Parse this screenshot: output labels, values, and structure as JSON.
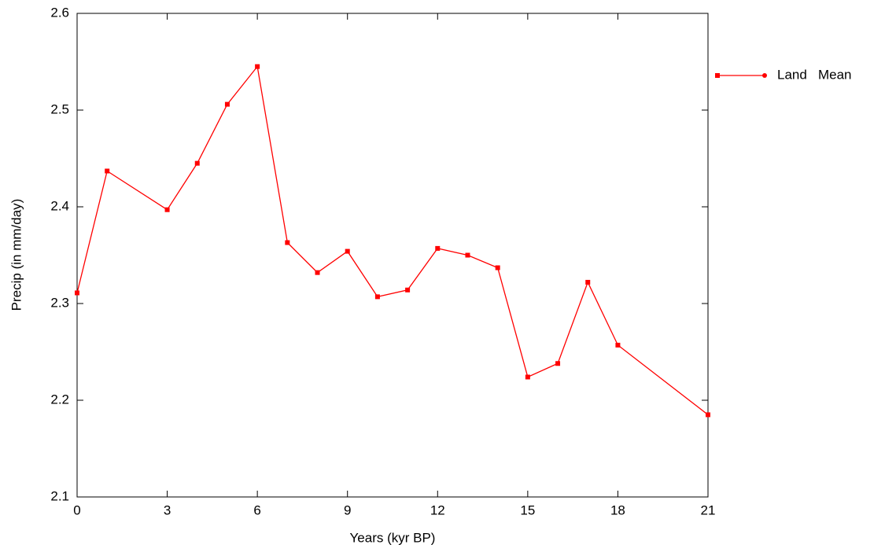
{
  "chart_data": {
    "type": "line",
    "x_label": "Years (kyr BP)",
    "y_label": "Precip (in mm/day)",
    "x": [
      0,
      1,
      3,
      4,
      5,
      6,
      7,
      8,
      9,
      10,
      11,
      12,
      13,
      14,
      15,
      16,
      17,
      18,
      21
    ],
    "series": [
      {
        "name": "Land   Mean",
        "color": "#ff0000",
        "values": [
          2.311,
          2.437,
          2.397,
          2.445,
          2.506,
          2.545,
          2.363,
          2.332,
          2.354,
          2.307,
          2.314,
          2.357,
          2.35,
          2.337,
          2.224,
          2.238,
          2.322,
          2.257,
          2.185
        ]
      }
    ],
    "xlim": [
      0,
      21
    ],
    "xticks": [
      0,
      3,
      6,
      9,
      12,
      15,
      18,
      21
    ],
    "ylim": [
      2.1,
      2.6
    ],
    "yticks": [
      2.1,
      2.2,
      2.3,
      2.4,
      2.5,
      2.6
    ],
    "grid": false,
    "legend": "right"
  }
}
